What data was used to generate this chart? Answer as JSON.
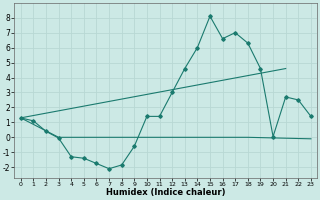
{
  "xlabel": "Humidex (Indice chaleur)",
  "xlim": [
    -0.5,
    23.5
  ],
  "ylim": [
    -2.7,
    9.0
  ],
  "xticks": [
    0,
    1,
    2,
    3,
    4,
    5,
    6,
    7,
    8,
    9,
    10,
    11,
    12,
    13,
    14,
    15,
    16,
    17,
    18,
    19,
    20,
    21,
    22,
    23
  ],
  "yticks": [
    -2,
    -1,
    0,
    1,
    2,
    3,
    4,
    5,
    6,
    7,
    8
  ],
  "background_color": "#cce9e5",
  "grid_color": "#b8d8d4",
  "line_color": "#1a7a6e",
  "line1_x": [
    0,
    1,
    2,
    3,
    4,
    5,
    6,
    7,
    8,
    9,
    10,
    11,
    12,
    13,
    14,
    15,
    16,
    17,
    18,
    19,
    20,
    21,
    22,
    23
  ],
  "line1_y": [
    1.3,
    1.1,
    0.4,
    -0.05,
    -1.3,
    -1.4,
    -1.75,
    -2.1,
    -1.85,
    -0.6,
    1.4,
    1.4,
    3.0,
    4.6,
    6.0,
    8.1,
    6.6,
    7.0,
    6.3,
    4.6,
    0.05,
    2.7,
    2.5,
    1.4
  ],
  "line2_x": [
    0,
    21
  ],
  "line2_y": [
    1.3,
    4.6
  ],
  "line3_x": [
    0,
    3,
    18,
    23
  ],
  "line3_y": [
    1.3,
    0.0,
    0.0,
    -0.1
  ]
}
